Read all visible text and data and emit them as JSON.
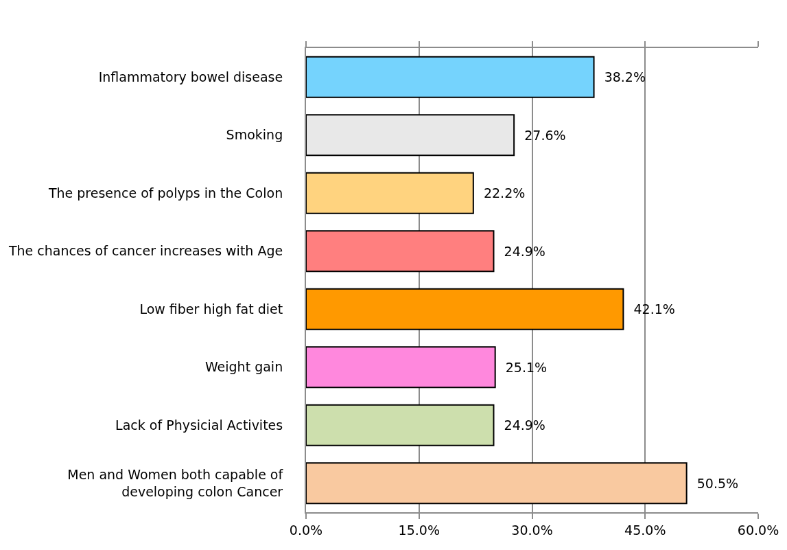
{
  "chart_data": {
    "type": "bar",
    "orientation": "horizontal",
    "categories": [
      "Inflammatory bowel disease",
      "Smoking",
      "The presence of polyps in the Colon",
      "The chances of cancer increases with Age",
      "Low fiber high fat diet",
      "Weight gain",
      "Lack of Physicial Activites",
      "Men and Women both capable of\ndeveloping colon Cancer"
    ],
    "values": [
      38.2,
      27.6,
      22.2,
      24.9,
      42.1,
      25.1,
      24.9,
      50.5
    ],
    "value_labels": [
      "38.2%",
      "27.6%",
      "22.2%",
      "24.9%",
      "42.1%",
      "25.1%",
      "24.9%",
      "50.5%"
    ],
    "colors": [
      "#75d3fd",
      "#e8e8e8",
      "#ffd37f",
      "#ff7f7f",
      "#ff9900",
      "#ff88dd",
      "#cddfad",
      "#f9c9a0"
    ],
    "xlim": [
      0,
      60
    ],
    "xticks": [
      {
        "value": 0,
        "label": "0.0%"
      },
      {
        "value": 15,
        "label": "15.0%"
      },
      {
        "value": 30,
        "label": "30.0%"
      },
      {
        "value": 45,
        "label": "45.0%"
      },
      {
        "value": 60,
        "label": "60.0%"
      }
    ],
    "grid": "x"
  }
}
